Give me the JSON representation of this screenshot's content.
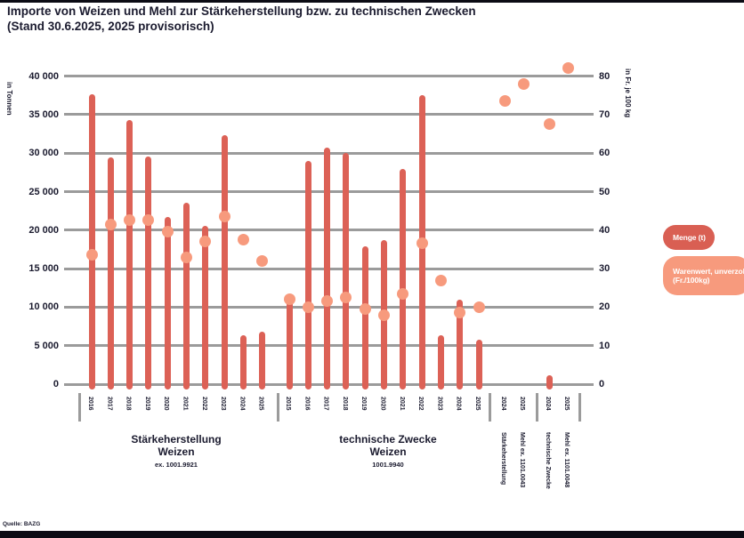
{
  "title": {
    "line1": "Importe von Weizen und Mehl zur Stärkeherstellung bzw. zu technischen Zwecken",
    "line2": "(Stand 30.6.2025, 2025 provisorisch)"
  },
  "legend": {
    "menge": {
      "label": "Menge (t)",
      "color": "#d95f53"
    },
    "warenwert": {
      "label": "Warenwert, unverzollt\n(Fr./100kg)",
      "color": "#f79a7d"
    }
  },
  "source": "Quelle: BAZG",
  "colors": {
    "bar": "#dc6156",
    "dot": "#f79a7d",
    "grid": "#9b9b9b",
    "text": "#1b1b2f"
  },
  "chart_data": {
    "type": "bar",
    "overlay_type": "scatter",
    "grid": true,
    "legend_position": "right",
    "left_axis": {
      "label": "in Tonnen",
      "step": 5000,
      "range": [
        0,
        42500
      ],
      "ticks": [
        "0",
        "5 000",
        "10 000",
        "15 000",
        "20 000",
        "25 000",
        "30 000",
        "35 000",
        "40 000"
      ]
    },
    "right_axis": {
      "label": "in Fr. je 100 kg",
      "step": 10,
      "range": [
        0,
        85
      ],
      "ticks": [
        "0",
        "10",
        "20",
        "30",
        "40",
        "50",
        "60",
        "70",
        "80"
      ]
    },
    "groups": [
      {
        "caption": "Stärkeherstellung",
        "caption2": "Weizen",
        "tariff": "ex. 1001.9921",
        "years": [
          "2016",
          "2017",
          "2018",
          "2019",
          "2020",
          "2021",
          "2022",
          "2023",
          "2024",
          "2025"
        ],
        "menge_t": [
          37600,
          29400,
          34300,
          29600,
          21700,
          23600,
          20500,
          32300,
          6300,
          6800
        ],
        "warenwert_fr_100kg": [
          33.5,
          41.5,
          42.5,
          42.5,
          39.5,
          33,
          37,
          43.5,
          37.5,
          32
        ]
      },
      {
        "caption": "technische Zwecke",
        "caption2": "Weizen",
        "tariff": "1001.9940",
        "years": [
          "2015",
          "2016",
          "2017",
          "2018",
          "2019",
          "2020",
          "2021",
          "2022",
          "2023",
          "2024",
          "2025"
        ],
        "menge_t": [
          10700,
          29000,
          30700,
          30000,
          17900,
          18700,
          28000,
          37500,
          6300,
          11000,
          5800
        ],
        "warenwert_fr_100kg": [
          22,
          20,
          21.5,
          22.5,
          19.5,
          18,
          23.5,
          36.5,
          27,
          18.5,
          20
        ]
      }
    ],
    "flour_columns": [
      {
        "year": "2024",
        "menge_t": 0,
        "warenwert_fr_100kg": 73.5
      },
      {
        "year": "2025",
        "menge_t": 0,
        "warenwert_fr_100kg": 78
      },
      {
        "year": "2024",
        "menge_t": 1200,
        "warenwert_fr_100kg": 67.5
      },
      {
        "year": "2025",
        "menge_t": 0,
        "warenwert_fr_100kg": 82
      }
    ],
    "flour_captions": [
      "Stärkeherstellung",
      "Mehl ex. 1101.0043",
      "technische Zwecke",
      "Mehl ex. 1101.0048"
    ]
  }
}
